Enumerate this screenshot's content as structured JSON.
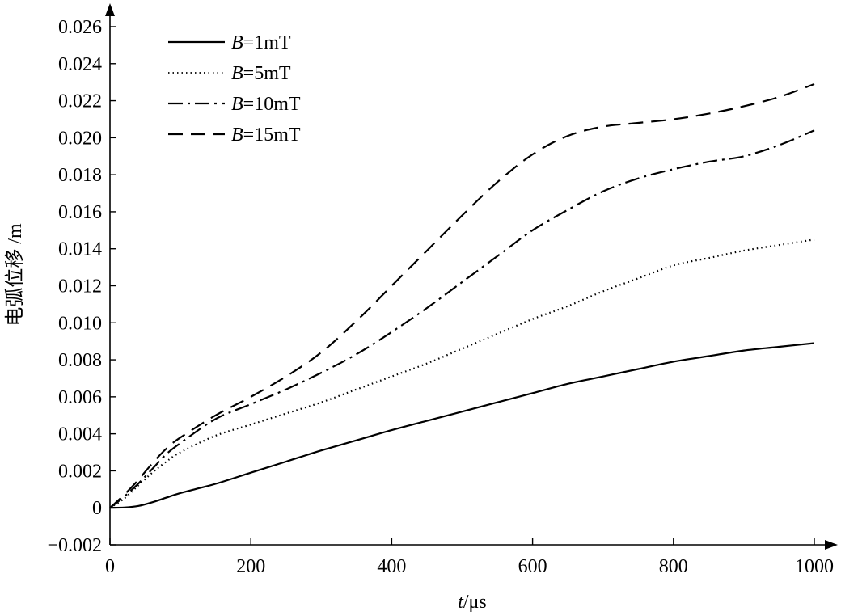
{
  "chart_data": {
    "type": "line",
    "title": "",
    "xlabel_var": "t",
    "xlabel_unit": "/μs",
    "ylabel": "电弧位移 /m",
    "xlim": [
      0,
      1000
    ],
    "ylim": [
      -0.002,
      0.026
    ],
    "xticks": [
      0,
      200,
      400,
      600,
      800,
      1000
    ],
    "xtick_labels": [
      "0",
      "200",
      "400",
      "600",
      "800",
      "1000"
    ],
    "yticks": [
      -0.002,
      0,
      0.002,
      0.004,
      0.006,
      0.008,
      0.01,
      0.012,
      0.014,
      0.016,
      0.018,
      0.02,
      0.022,
      0.024,
      0.026
    ],
    "ytick_labels": [
      "−0.002",
      "0",
      "0.002",
      "0.004",
      "0.006",
      "0.008",
      "0.010",
      "0.012",
      "0.014",
      "0.016",
      "0.018",
      "0.020",
      "0.022",
      "0.024",
      "0.026"
    ],
    "grid": false,
    "legend_position": "top-left",
    "series": [
      {
        "legend_var": "B",
        "legend_rest": "=1mT",
        "dash": "solid",
        "x": [
          0,
          20,
          40,
          60,
          80,
          100,
          150,
          200,
          250,
          300,
          350,
          400,
          450,
          500,
          550,
          600,
          650,
          700,
          750,
          800,
          850,
          900,
          950,
          1000
        ],
        "y": [
          0.0,
          2e-05,
          0.0001,
          0.0003,
          0.00055,
          0.0008,
          0.0013,
          0.0019,
          0.0025,
          0.0031,
          0.00365,
          0.0042,
          0.0047,
          0.0052,
          0.0057,
          0.0062,
          0.0067,
          0.0071,
          0.0075,
          0.0079,
          0.0082,
          0.0085,
          0.0087,
          0.0089
        ]
      },
      {
        "legend_var": "B",
        "legend_rest": "=5mT",
        "dash": "dotted",
        "x": [
          0,
          20,
          40,
          60,
          80,
          100,
          150,
          200,
          250,
          300,
          350,
          400,
          450,
          500,
          550,
          600,
          650,
          700,
          750,
          800,
          850,
          900,
          950,
          1000
        ],
        "y": [
          0.0,
          0.0005,
          0.0012,
          0.0019,
          0.0025,
          0.003,
          0.0039,
          0.0045,
          0.0051,
          0.0057,
          0.0064,
          0.0071,
          0.0078,
          0.0086,
          0.0094,
          0.0102,
          0.0109,
          0.0117,
          0.0124,
          0.0131,
          0.0135,
          0.0139,
          0.0142,
          0.0145
        ]
      },
      {
        "legend_var": "B",
        "legend_rest": "=10mT",
        "dash": "dashdot",
        "x": [
          0,
          20,
          40,
          60,
          80,
          100,
          150,
          200,
          250,
          300,
          350,
          400,
          450,
          500,
          550,
          600,
          650,
          700,
          750,
          800,
          850,
          900,
          950,
          1000
        ],
        "y": [
          0.0,
          0.0006,
          0.0013,
          0.0021,
          0.0029,
          0.0035,
          0.0048,
          0.0056,
          0.0064,
          0.0073,
          0.0083,
          0.0095,
          0.0108,
          0.0122,
          0.0136,
          0.015,
          0.0161,
          0.0171,
          0.0178,
          0.0183,
          0.0187,
          0.019,
          0.0196,
          0.0204
        ]
      },
      {
        "legend_var": "B",
        "legend_rest": "=15mT",
        "dash": "dashed",
        "x": [
          0,
          20,
          40,
          60,
          80,
          100,
          150,
          200,
          250,
          300,
          350,
          400,
          450,
          500,
          550,
          600,
          650,
          700,
          750,
          800,
          850,
          900,
          950,
          1000
        ],
        "y": [
          0.0,
          0.0007,
          0.0015,
          0.0024,
          0.0032,
          0.0038,
          0.005,
          0.006,
          0.0071,
          0.0084,
          0.0101,
          0.012,
          0.0139,
          0.0158,
          0.0176,
          0.0191,
          0.0201,
          0.0206,
          0.0208,
          0.021,
          0.0213,
          0.0217,
          0.0222,
          0.0229
        ]
      }
    ]
  }
}
